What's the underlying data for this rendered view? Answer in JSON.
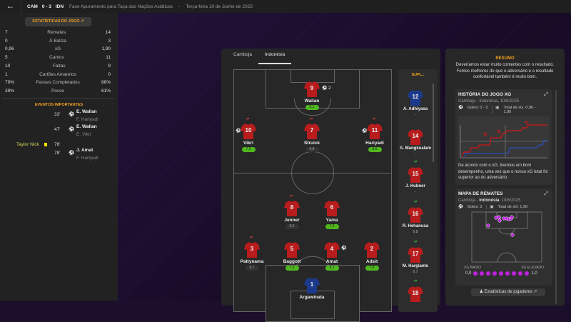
{
  "header": {
    "back_icon": "arrow-left-icon",
    "home": "CAM",
    "score": "0 - 3",
    "away": "IDN",
    "competition": "Fase Apuramento para Taça das Nações Asiáticas",
    "separator": "-",
    "date": "Terça-feira 10 de Junho de 2025"
  },
  "stats": {
    "button": "ESTATÍSTICAS DO JOGO",
    "rows": [
      {
        "home": "7",
        "label": "Remates",
        "away": "14"
      },
      {
        "home": "0",
        "label": "À Baliza",
        "away": "3"
      },
      {
        "home": "0,96",
        "label": "xG",
        "away": "1,90"
      },
      {
        "home": "5",
        "label": "Cantos",
        "away": "11"
      },
      {
        "home": "10",
        "label": "Faltas",
        "away": "9"
      },
      {
        "home": "1",
        "label": "Cartões Amarelos",
        "away": "0"
      },
      {
        "home": "79%",
        "label": "Passes Completados",
        "away": "88%"
      },
      {
        "home": "39%",
        "label": "Posse",
        "away": "61%"
      }
    ]
  },
  "events": {
    "title": "EVENTOS IMPORTANTES",
    "items": [
      {
        "minute": "33'",
        "icon": "ball-icon",
        "player": "E. Walian",
        "assist": "F. Hariyadi"
      },
      {
        "minute": "47'",
        "icon": "ball-icon",
        "player": "E. Walian",
        "assist": "E. Vikri"
      },
      {
        "minute": "76'",
        "icon": "yellow-card-icon",
        "home_player": "Taylor Nick"
      },
      {
        "minute": "78'",
        "icon": "ball-icon",
        "player": "J. Amat",
        "assist": "F. Hariyadi"
      }
    ]
  },
  "lineup": {
    "tabs": [
      "Camboja",
      "Indonésia"
    ],
    "active_tab": "Indonésia",
    "subs_title": "SUPL.:",
    "players": [
      {
        "num": "9",
        "name": "Walian",
        "rating": "8,1",
        "good": true,
        "goals": "2"
      },
      {
        "num": "10",
        "name": "Vikri",
        "rating": "7,3",
        "good": true
      },
      {
        "num": "7",
        "name": "Struick",
        "rating": "6,6",
        "good": false
      },
      {
        "num": "11",
        "name": "Hariyadi",
        "rating": "8,0",
        "good": true
      },
      {
        "num": "8",
        "name": "Jenner",
        "rating": "6,6",
        "good": false
      },
      {
        "num": "6",
        "name": "Yama",
        "rating": "7,0",
        "good": true
      },
      {
        "num": "3",
        "name": "Pattynama",
        "rating": "6,7",
        "good": false
      },
      {
        "num": "5",
        "name": "Baggott",
        "rating": "7,3",
        "good": true
      },
      {
        "num": "4",
        "name": "Amat",
        "rating": "8,3",
        "good": true
      },
      {
        "num": "2",
        "name": "Adsit",
        "rating": "7,4",
        "good": true
      },
      {
        "num": "1",
        "name": "Argawinata",
        "rating": "",
        "good": false,
        "gk": true
      }
    ],
    "subs": [
      {
        "num": "12",
        "name": "A. Adhiyasa",
        "rating": "-",
        "gk": true
      },
      {
        "num": "14",
        "name": "A. Mangkualam",
        "rating": "-"
      },
      {
        "num": "15",
        "name": "J. Hubner",
        "rating": "-"
      },
      {
        "num": "16",
        "name": "R. Hehanusa",
        "rating": "6,8"
      },
      {
        "num": "17",
        "name": "M. Hargianto",
        "rating": "6,7"
      },
      {
        "num": "18",
        "name": "",
        "rating": ""
      }
    ]
  },
  "summary": {
    "title": "RESUMO",
    "text": "Deveríamos estar muito contentes com o resultado. Fomos melhores do que o adversário e o resultado confortável também é muito bom.",
    "xg_card": {
      "title": "HISTÓRIA DO JOGO XG",
      "match": "Camboja - Indonésia, 10/6/2025",
      "goals": "Golos: 0 - 3",
      "total": "Total de xG: 0,96 - 1,90",
      "text": "De acordo com o xG, tivemos um bom desempenho, uma vez que o nosso xG total foi superior ao do adversário.",
      "home_color": "#2a4db8",
      "away_color": "#d01818"
    },
    "shots_card": {
      "title": "MAPA DE REMATES",
      "match_a": "Camboja - ",
      "match_b": "Indonésia",
      "match_c": ", 10/6/2025",
      "goals": "Golos: 3",
      "total": "Total de xG: 1,90",
      "low": "XG BAIXO",
      "high": "XG ELEVADO",
      "min": "0,0",
      "max": "1,0",
      "shot_color": "#c020e0"
    },
    "players_button": "Estatísticas de jogadores"
  },
  "colors": {
    "accent": "#f0a020",
    "good_rating": "#4fb81e",
    "kit": "#b81c1c",
    "gk_kit": "#1c3a8c"
  }
}
